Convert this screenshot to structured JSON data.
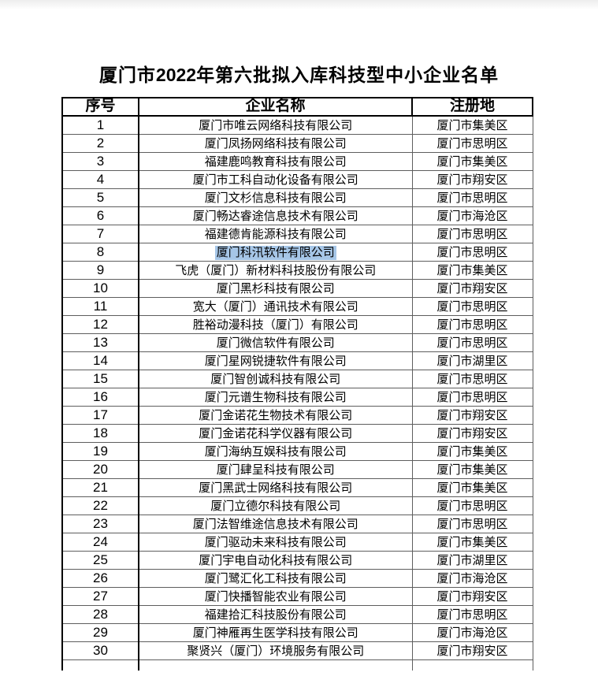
{
  "title": {
    "prefix": "厦门市",
    "year": "2022",
    "suffix": "年第六批拟入库科技型中小企业名单"
  },
  "table": {
    "headers": [
      "序号",
      "企业名称",
      "注册地"
    ],
    "rows": [
      {
        "no": "1",
        "name": "厦门市唯云网络科技有限公司",
        "location": "厦门市集美区"
      },
      {
        "no": "2",
        "name": "厦门凤扬网络科技有限公司",
        "location": "厦门市思明区"
      },
      {
        "no": "3",
        "name": "福建鹿鸣教育科技有限公司",
        "location": "厦门市集美区"
      },
      {
        "no": "4",
        "name": "厦门市工科自动化设备有限公司",
        "location": "厦门市翔安区"
      },
      {
        "no": "5",
        "name": "厦门文杉信息科技有限公司",
        "location": "厦门市思明区"
      },
      {
        "no": "6",
        "name": "厦门畅达睿途信息技术有限公司",
        "location": "厦门市海沧区"
      },
      {
        "no": "7",
        "name": "福建德肯能源科技有限公司",
        "location": "厦门市思明区"
      },
      {
        "no": "8",
        "name": "厦门科汛软件有限公司",
        "location": "厦门市思明区",
        "highlighted": true
      },
      {
        "no": "9",
        "name": "飞虎（厦门）新材料科技股份有限公司",
        "location": "厦门市集美区"
      },
      {
        "no": "10",
        "name": "厦门黑杉科技有限公司",
        "location": "厦门市翔安区"
      },
      {
        "no": "11",
        "name": "宽大（厦门）通讯技术有限公司",
        "location": "厦门市思明区"
      },
      {
        "no": "12",
        "name": "胜裕动漫科技（厦门）有限公司",
        "location": "厦门市思明区"
      },
      {
        "no": "13",
        "name": "厦门微信软件有限公司",
        "location": "厦门市思明区"
      },
      {
        "no": "14",
        "name": "厦门星网锐捷软件有限公司",
        "location": "厦门市湖里区"
      },
      {
        "no": "15",
        "name": "厦门智创诚科技有限公司",
        "location": "厦门市思明区"
      },
      {
        "no": "16",
        "name": "厦门元谱生物科技有限公司",
        "location": "厦门市思明区"
      },
      {
        "no": "17",
        "name": "厦门金诺花生物技术有限公司",
        "location": "厦门市翔安区"
      },
      {
        "no": "18",
        "name": "厦门金诺花科学仪器有限公司",
        "location": "厦门市翔安区"
      },
      {
        "no": "19",
        "name": "厦门海纳互娱科技有限公司",
        "location": "厦门市集美区"
      },
      {
        "no": "20",
        "name": "厦门肆呈科技有限公司",
        "location": "厦门市集美区"
      },
      {
        "no": "21",
        "name": "厦门黑武士网络科技有限公司",
        "location": "厦门市集美区"
      },
      {
        "no": "22",
        "name": "厦门立德尔科技有限公司",
        "location": "厦门市思明区"
      },
      {
        "no": "23",
        "name": "厦门法智维途信息技术有限公司",
        "location": "厦门市思明区"
      },
      {
        "no": "24",
        "name": "厦门驱动未来科技有限公司",
        "location": "厦门市集美区"
      },
      {
        "no": "25",
        "name": "厦门宇电自动化科技有限公司",
        "location": "厦门市湖里区"
      },
      {
        "no": "26",
        "name": "厦门鹭汇化工科技有限公司",
        "location": "厦门市海沧区"
      },
      {
        "no": "27",
        "name": "厦门快播智能农业有限公司",
        "location": "厦门市翔安区"
      },
      {
        "no": "28",
        "name": "福建拾汇科技股份有限公司",
        "location": "厦门市思明区"
      },
      {
        "no": "29",
        "name": "厦门神雁再生医学科技有限公司",
        "location": "厦门市海沧区"
      },
      {
        "no": "30",
        "name": "聚贤兴（厦门）环境服务有限公司",
        "location": "厦门市翔安区"
      }
    ]
  },
  "selection": {
    "highlighted_row_no": "8",
    "highlighted_text": "厦门科汛软件有限公司",
    "color": "#a6c6e7"
  }
}
